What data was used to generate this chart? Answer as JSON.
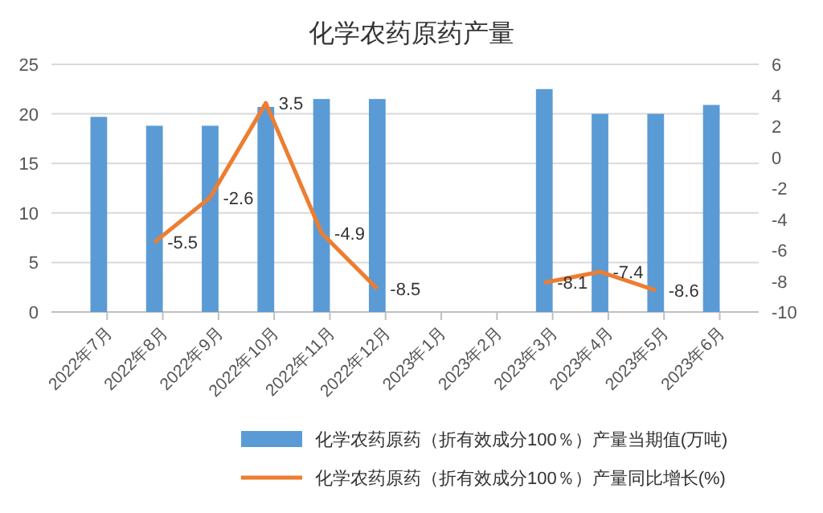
{
  "chart_data": {
    "type": "bar",
    "title": "化学农药原药产量",
    "categories": [
      "2022年7月",
      "2022年8月",
      "2022年9月",
      "2022年10月",
      "2022年11月",
      "2022年12月",
      "2023年1月",
      "2023年2月",
      "2023年3月",
      "2023年4月",
      "2023年5月",
      "2023年6月"
    ],
    "series": [
      {
        "name": "化学农药原药（折有效成分100％）产量当期值(万吨)",
        "color": "#5b9bd5",
        "values": [
          19.7,
          18.8,
          18.8,
          20.7,
          21.5,
          21.5,
          null,
          null,
          22.5,
          20.0,
          20.0,
          20.9
        ]
      },
      {
        "name": "化学农药原药（折有效成分100％）产量同比增长(%)",
        "type": "line",
        "axis": "y2",
        "color": "#ed7d31",
        "values": [
          null,
          -5.5,
          -2.6,
          3.5,
          -4.9,
          -8.5,
          null,
          null,
          -8.1,
          -7.4,
          -8.6,
          null
        ],
        "value_labels": [
          null,
          "-5.5",
          "-2.6",
          "3.5",
          "-4.9",
          "-8.5",
          null,
          null,
          "-8.1",
          "-7.4",
          "-8.6",
          null
        ]
      }
    ],
    "ylim": [
      0,
      25
    ],
    "yticks": [
      0,
      5,
      10,
      15,
      20,
      25
    ],
    "y2lim": [
      -10,
      6
    ],
    "y2ticks": [
      -10,
      -8,
      -6,
      -4,
      -2,
      0,
      2,
      4,
      6
    ],
    "grid": "y",
    "legend": "bottom",
    "marker": "none"
  }
}
